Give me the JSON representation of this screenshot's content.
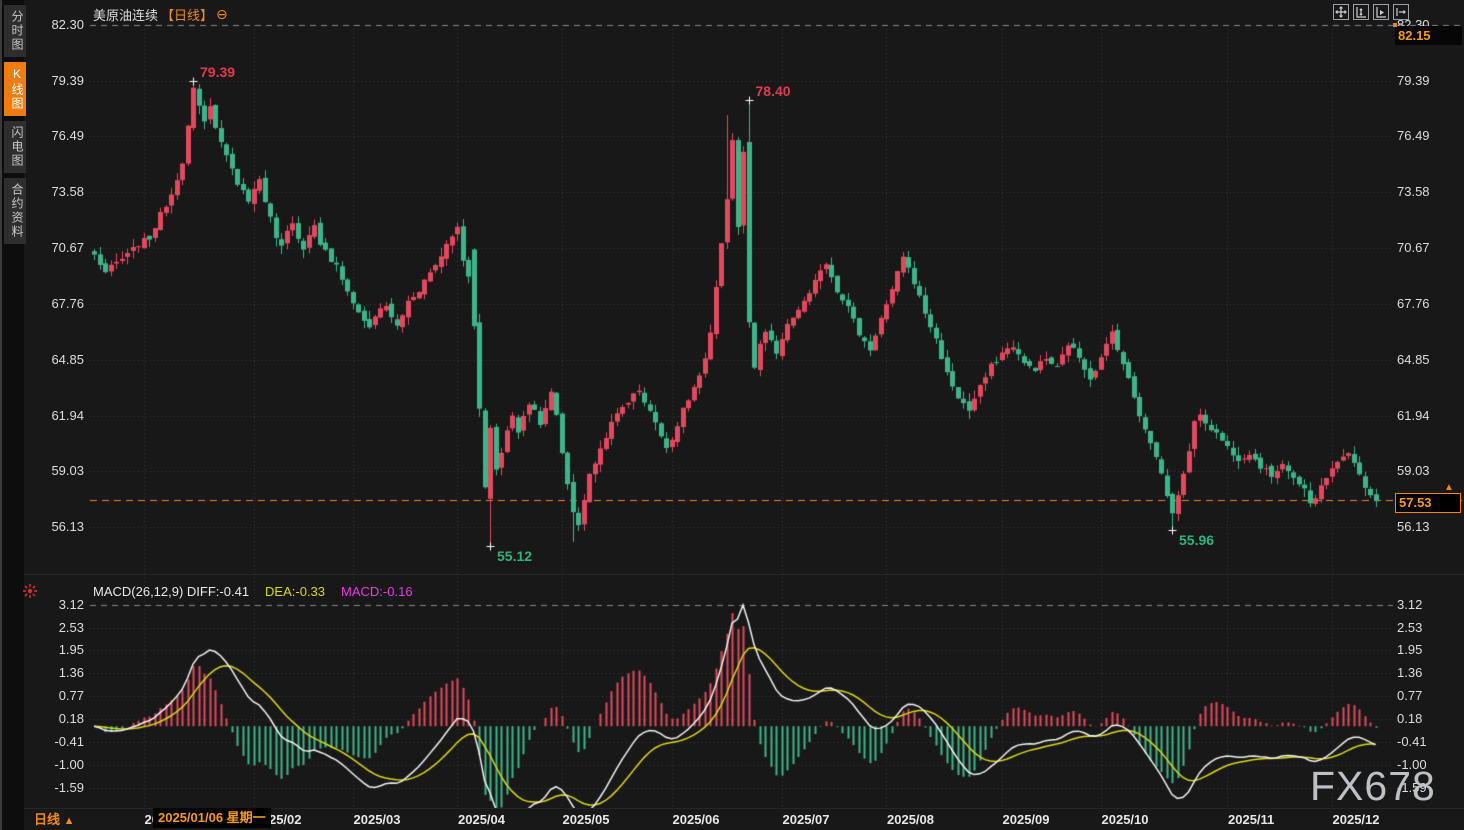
{
  "sidebar": {
    "tabs": [
      {
        "name": "sidebar-tab-time-chart",
        "label": "分时图",
        "active": false
      },
      {
        "name": "sidebar-tab-kline-chart",
        "label": "K线图",
        "active": true
      },
      {
        "name": "sidebar-tab-lightning-chart",
        "label": "闪电图",
        "active": false
      },
      {
        "name": "sidebar-tab-contract-info",
        "label": "合约资料",
        "active": false
      }
    ]
  },
  "header": {
    "title": "美原油连续",
    "period_tag": "【日线】",
    "settings_glyph": "⊖"
  },
  "toolbar": {
    "icons": [
      "pan-tool",
      "fit-vertical-axis",
      "fit-horizontal-axis",
      "go-to-latest"
    ]
  },
  "price_axis": {
    "top_marker": "82.15",
    "current_price": "57.53",
    "current_marker": "▲"
  },
  "macd": {
    "label_diff": "MACD(26,12,9) DIFF:-0.41",
    "label_dea": "DEA:-0.33",
    "label_macd": "MACD:-0.16"
  },
  "x_axis": {
    "tooltip": "2025/01/06 星期一",
    "period_label": "日线",
    "period_arrow": "▲"
  },
  "watermark": "FX678",
  "colors": {
    "background": "#181818",
    "candle_up": "#e2495e",
    "candle_down": "#3db489",
    "hist_up": "#e2495e",
    "hist_down": "#3db489",
    "diff_line": "#f2f2f2",
    "dea_line": "#d9d916",
    "grid_dot": "#383838",
    "grid_dash": "#8a8a8a",
    "price_line": "#f0841c",
    "accent_orange": "#f28a1d",
    "ann_high": "#e23a50",
    "ann_low": "#2cb57f"
  },
  "chart_data": {
    "type": "candlestick_with_macd",
    "instrument": "美原油连续",
    "period": "日线",
    "price_axis": {
      "max": 82.3,
      "min": 56.13,
      "ticks": [
        82.3,
        79.39,
        76.49,
        73.58,
        70.67,
        67.76,
        64.85,
        61.94,
        59.03,
        56.13
      ]
    },
    "macd_axis": {
      "max": 3.12,
      "min": -1.59,
      "ticks": [
        3.12,
        2.53,
        1.95,
        1.36,
        0.77,
        0.18,
        -0.41,
        -1.0,
        -1.59
      ]
    },
    "macd_params": {
      "slow": 26,
      "fast": 12,
      "signal": 9,
      "diff": -0.41,
      "dea": -0.33,
      "macd": -0.16
    },
    "current_price": 57.53,
    "session_high": 82.15,
    "candle_count": 234,
    "months": [
      {
        "label": "2025/01",
        "idx": 9
      },
      {
        "label": "2025/02",
        "idx": 29
      },
      {
        "label": "2025/03",
        "idx": 47
      },
      {
        "label": "2025/04",
        "idx": 66
      },
      {
        "label": "2025/05",
        "idx": 85
      },
      {
        "label": "2025/06",
        "idx": 105
      },
      {
        "label": "2025/07",
        "idx": 125
      },
      {
        "label": "2025/08",
        "idx": 144
      },
      {
        "label": "2025/09",
        "idx": 165
      },
      {
        "label": "2025/10",
        "idx": 183
      },
      {
        "label": "2025/11",
        "idx": 206
      },
      {
        "label": "2025/12",
        "idx": 225
      }
    ],
    "annotations": [
      {
        "label": "79.39",
        "idx": 18,
        "price": 79.39,
        "kind": "high"
      },
      {
        "label": "78.40",
        "idx": 119,
        "price": 78.4,
        "kind": "high"
      },
      {
        "label": "55.12",
        "idx": 72,
        "price": 55.12,
        "kind": "low"
      },
      {
        "label": "55.96",
        "idx": 196,
        "price": 55.96,
        "kind": "low"
      }
    ],
    "close_anchors": [
      [
        0,
        70.3
      ],
      [
        2,
        69.4
      ],
      [
        4,
        69.9
      ],
      [
        6,
        70.3
      ],
      [
        8,
        70.9
      ],
      [
        10,
        71.2
      ],
      [
        12,
        72.4
      ],
      [
        14,
        73.5
      ],
      [
        16,
        75.2
      ],
      [
        17,
        77.0
      ],
      [
        18,
        78.9
      ],
      [
        19,
        78.0
      ],
      [
        20,
        77.2
      ],
      [
        21,
        78.2
      ],
      [
        22,
        76.9
      ],
      [
        23,
        76.2
      ],
      [
        24,
        75.6
      ],
      [
        25,
        74.7
      ],
      [
        26,
        74.1
      ],
      [
        27,
        73.6
      ],
      [
        28,
        73.2
      ],
      [
        29,
        73.9
      ],
      [
        30,
        74.2
      ],
      [
        31,
        73.0
      ],
      [
        32,
        72.2
      ],
      [
        33,
        71.1
      ],
      [
        34,
        70.7
      ],
      [
        35,
        71.5
      ],
      [
        36,
        72.1
      ],
      [
        37,
        71.2
      ],
      [
        38,
        70.7
      ],
      [
        39,
        71.3
      ],
      [
        40,
        71.9
      ],
      [
        41,
        70.9
      ],
      [
        42,
        70.5
      ],
      [
        43,
        70.0
      ],
      [
        44,
        69.7
      ],
      [
        45,
        69.0
      ],
      [
        46,
        68.5
      ],
      [
        47,
        67.8
      ],
      [
        48,
        67.3
      ],
      [
        49,
        66.9
      ],
      [
        50,
        66.6
      ],
      [
        51,
        67.0
      ],
      [
        52,
        67.5
      ],
      [
        53,
        67.7
      ],
      [
        54,
        67.0
      ],
      [
        55,
        66.6
      ],
      [
        56,
        67.2
      ],
      [
        57,
        67.9
      ],
      [
        58,
        68.2
      ],
      [
        59,
        68.5
      ],
      [
        60,
        69.0
      ],
      [
        61,
        69.4
      ],
      [
        62,
        69.8
      ],
      [
        63,
        70.3
      ],
      [
        64,
        70.9
      ],
      [
        65,
        71.4
      ],
      [
        66,
        71.7
      ],
      [
        67,
        70.1
      ],
      [
        68,
        69.3
      ],
      [
        69,
        66.6
      ],
      [
        70,
        62.3
      ],
      [
        71,
        58.2
      ],
      [
        72,
        61.3
      ],
      [
        73,
        59.2
      ],
      [
        74,
        60.0
      ],
      [
        75,
        61.2
      ],
      [
        76,
        61.9
      ],
      [
        77,
        61.0
      ],
      [
        78,
        62.0
      ],
      [
        79,
        62.6
      ],
      [
        80,
        62.2
      ],
      [
        81,
        61.6
      ],
      [
        82,
        62.4
      ],
      [
        83,
        63.1
      ],
      [
        84,
        61.9
      ],
      [
        85,
        60.0
      ],
      [
        86,
        58.4
      ],
      [
        87,
        56.9
      ],
      [
        88,
        56.3
      ],
      [
        89,
        57.6
      ],
      [
        90,
        58.8
      ],
      [
        91,
        59.5
      ],
      [
        92,
        60.2
      ],
      [
        93,
        60.9
      ],
      [
        94,
        61.5
      ],
      [
        95,
        62.0
      ],
      [
        96,
        62.4
      ],
      [
        97,
        62.7
      ],
      [
        98,
        63.0
      ],
      [
        99,
        63.3
      ],
      [
        100,
        62.7
      ],
      [
        101,
        62.2
      ],
      [
        102,
        61.5
      ],
      [
        103,
        60.9
      ],
      [
        104,
        60.4
      ],
      [
        105,
        60.7
      ],
      [
        106,
        61.5
      ],
      [
        107,
        62.2
      ],
      [
        108,
        62.8
      ],
      [
        109,
        63.4
      ],
      [
        110,
        64.0
      ],
      [
        111,
        64.8
      ],
      [
        112,
        66.2
      ],
      [
        113,
        68.5
      ],
      [
        114,
        71.0
      ],
      [
        115,
        73.3
      ],
      [
        116,
        76.3
      ],
      [
        117,
        71.8
      ],
      [
        118,
        75.6
      ],
      [
        119,
        66.8
      ],
      [
        120,
        64.3
      ],
      [
        121,
        65.6
      ],
      [
        122,
        66.3
      ],
      [
        124,
        65.2
      ],
      [
        126,
        66.6
      ],
      [
        128,
        67.5
      ],
      [
        130,
        68.2
      ],
      [
        132,
        69.6
      ],
      [
        133,
        69.9
      ],
      [
        135,
        68.5
      ],
      [
        137,
        67.6
      ],
      [
        139,
        66.2
      ],
      [
        141,
        65.4
      ],
      [
        143,
        67.0
      ],
      [
        145,
        68.4
      ],
      [
        147,
        70.3
      ],
      [
        149,
        68.9
      ],
      [
        151,
        67.3
      ],
      [
        153,
        65.9
      ],
      [
        155,
        64.1
      ],
      [
        157,
        62.9
      ],
      [
        159,
        62.2
      ],
      [
        161,
        63.4
      ],
      [
        163,
        64.5
      ],
      [
        165,
        65.2
      ],
      [
        167,
        65.6
      ],
      [
        169,
        64.6
      ],
      [
        171,
        64.4
      ],
      [
        173,
        64.9
      ],
      [
        175,
        64.4
      ],
      [
        177,
        65.7
      ],
      [
        179,
        65.0
      ],
      [
        181,
        63.9
      ],
      [
        183,
        64.9
      ],
      [
        185,
        66.3
      ],
      [
        186,
        65.5
      ],
      [
        188,
        63.8
      ],
      [
        190,
        62.0
      ],
      [
        192,
        60.6
      ],
      [
        194,
        58.9
      ],
      [
        195,
        57.8
      ],
      [
        196,
        56.8
      ],
      [
        197,
        57.9
      ],
      [
        198,
        58.8
      ],
      [
        199,
        60.2
      ],
      [
        200,
        61.5
      ],
      [
        201,
        62.1
      ],
      [
        202,
        61.6
      ],
      [
        204,
        61.0
      ],
      [
        206,
        60.3
      ],
      [
        208,
        59.7
      ],
      [
        210,
        60.0
      ],
      [
        212,
        59.3
      ],
      [
        214,
        58.8
      ],
      [
        216,
        59.5
      ],
      [
        218,
        58.7
      ],
      [
        220,
        58.0
      ],
      [
        221,
        57.3
      ],
      [
        222,
        57.6
      ],
      [
        223,
        58.4
      ],
      [
        225,
        59.1
      ],
      [
        227,
        59.8
      ],
      [
        228,
        60.1
      ],
      [
        229,
        59.4
      ],
      [
        230,
        58.8
      ],
      [
        231,
        58.3
      ],
      [
        232,
        57.9
      ],
      [
        233,
        57.53
      ]
    ],
    "special_candles": {
      "18": {
        "h": 79.39
      },
      "69": {
        "o": 70.6,
        "c": 66.6
      },
      "70": {
        "o": 66.8,
        "c": 62.3
      },
      "71": {
        "o": 62.2,
        "c": 58.2
      },
      "72": {
        "o": 57.6,
        "c": 61.3,
        "l": 55.12
      },
      "87": {
        "l": 55.35
      },
      "115": {
        "h": 77.6
      },
      "119": {
        "o": 76.2,
        "c": 66.8,
        "h": 78.4
      },
      "196": {
        "l": 55.96
      }
    }
  }
}
